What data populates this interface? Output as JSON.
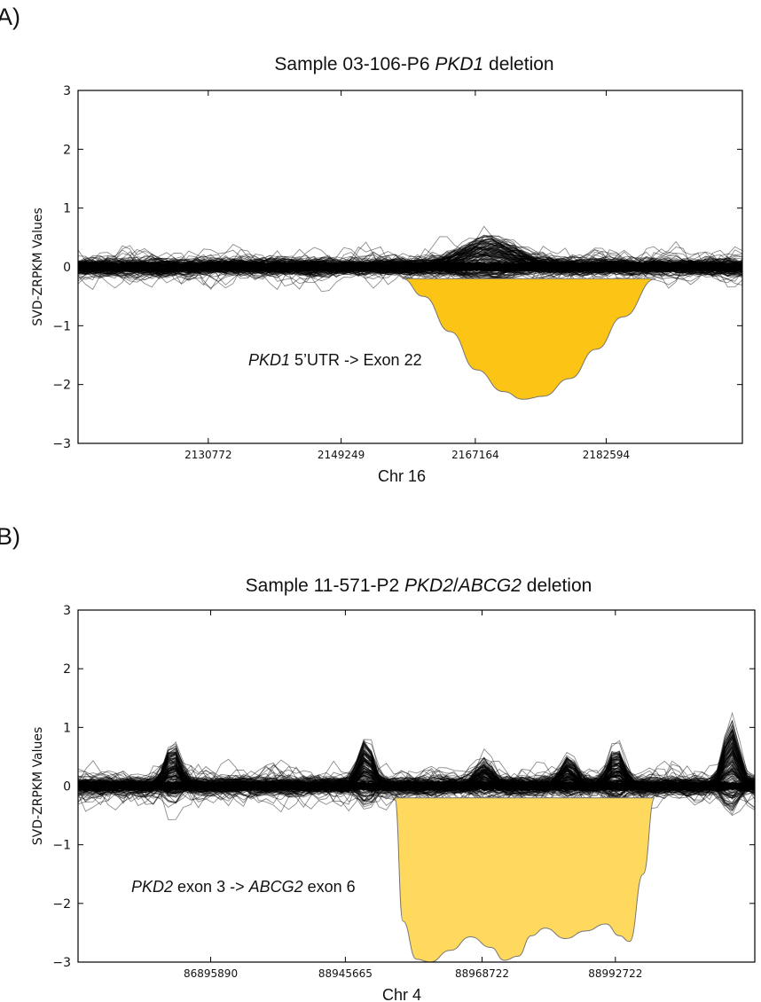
{
  "chart_data": [
    {
      "panel": "A)",
      "type": "line",
      "title_parts": [
        "Sample 03-106-P6 ",
        "PKD1",
        " deletion"
      ],
      "title_italic": [
        false,
        true,
        false
      ],
      "xlabel": "Chr 16",
      "ylabel": "SVD-ZRPKM Values",
      "ylim": [
        -3,
        3
      ],
      "yticks": [
        "3",
        "2",
        "1",
        "0",
        "−1",
        "−2",
        "−3"
      ],
      "yticks_values": [
        3,
        2,
        1,
        0,
        -1,
        -2,
        -3
      ],
      "xlim": [
        0,
        1
      ],
      "xticks": [
        "2130772",
        "2149249",
        "2167164",
        "2182594"
      ],
      "xticks_pos": [
        0.196,
        0.396,
        0.598,
        0.795
      ],
      "annotation_parts": [
        "PKD1",
        " 5’UTR -> Exon 22"
      ],
      "annotation_italic": [
        true,
        false
      ],
      "series_description": "about 200 reference sample traces fluctuating around 0 within roughly -0.8 to 0.95",
      "deletion_fill": "#fcc415",
      "deletion_region": {
        "x_start": 0.488,
        "x_end": 0.87,
        "top": -0.2,
        "min": -2.25
      },
      "deletion_curve": [
        [
          0.488,
          -0.2
        ],
        [
          0.52,
          -0.5
        ],
        [
          0.56,
          -1.1
        ],
        [
          0.6,
          -1.75
        ],
        [
          0.64,
          -2.12
        ],
        [
          0.67,
          -2.25
        ],
        [
          0.7,
          -2.2
        ],
        [
          0.74,
          -1.9
        ],
        [
          0.78,
          -1.4
        ],
        [
          0.82,
          -0.85
        ],
        [
          0.87,
          -0.2
        ]
      ]
    },
    {
      "panel": "B)",
      "type": "line",
      "title_parts": [
        "Sample 11-571-P2 ",
        "PKD2",
        "/",
        "ABCG2",
        " deletion"
      ],
      "title_italic": [
        false,
        true,
        false,
        true,
        false
      ],
      "xlabel": "Chr 4",
      "ylabel": "SVD-ZRPKM Values",
      "ylim": [
        -3,
        3
      ],
      "yticks": [
        "3",
        "2",
        "1",
        "0",
        "−1",
        "−2",
        "−3"
      ],
      "yticks_values": [
        3,
        2,
        1,
        0,
        -1,
        -2,
        -3
      ],
      "xlim": [
        0,
        1
      ],
      "xticks": [
        "86895890",
        "88945665",
        "88968722",
        "88992722"
      ],
      "xticks_pos": [
        0.196,
        0.395,
        0.597,
        0.794
      ],
      "annotation_parts": [
        "PKD2",
        " exon 3 -> ",
        "ABCG2",
        " exon 6"
      ],
      "annotation_italic": [
        true,
        false,
        true,
        false
      ],
      "series_description": "about 200 reference sample traces fluctuating around 0 with peaks up to about 1.4",
      "deletion_fill": "#fed95d",
      "deletion_region": {
        "x_start": 0.468,
        "x_end": 0.852,
        "top": -0.2,
        "min": -3.0
      },
      "deletion_curve": [
        [
          0.468,
          -0.2
        ],
        [
          0.48,
          -2.3
        ],
        [
          0.5,
          -2.95
        ],
        [
          0.52,
          -3.0
        ],
        [
          0.55,
          -2.8
        ],
        [
          0.58,
          -2.57
        ],
        [
          0.61,
          -2.75
        ],
        [
          0.63,
          -2.97
        ],
        [
          0.65,
          -2.9
        ],
        [
          0.67,
          -2.55
        ],
        [
          0.69,
          -2.42
        ],
        [
          0.72,
          -2.6
        ],
        [
          0.75,
          -2.47
        ],
        [
          0.78,
          -2.35
        ],
        [
          0.8,
          -2.55
        ],
        [
          0.815,
          -2.65
        ],
        [
          0.835,
          -1.5
        ],
        [
          0.852,
          -0.2
        ]
      ]
    }
  ]
}
